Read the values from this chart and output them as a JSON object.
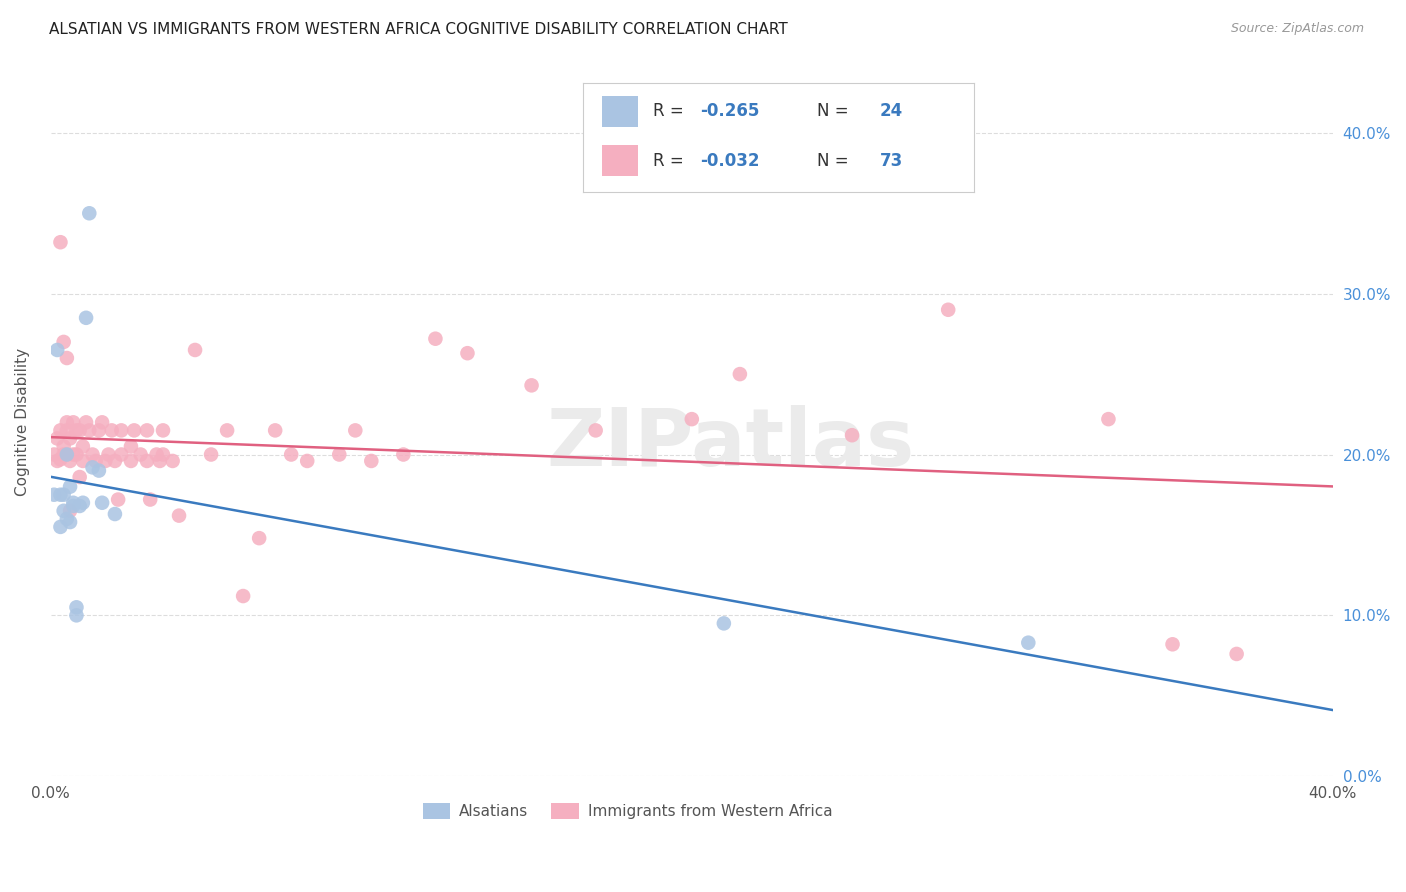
{
  "title": "ALSATIAN VS IMMIGRANTS FROM WESTERN AFRICA COGNITIVE DISABILITY CORRELATION CHART",
  "source": "Source: ZipAtlas.com",
  "ylabel": "Cognitive Disability",
  "watermark": "ZIPatlas",
  "legend_label_blue": "Alsatians",
  "legend_label_pink": "Immigrants from Western Africa",
  "blue_color": "#aac4e2",
  "pink_color": "#f5afc0",
  "blue_line_color": "#3a7abf",
  "pink_line_color": "#e06080",
  "xlim": [
    0.0,
    0.4
  ],
  "ylim": [
    0.0,
    0.44
  ],
  "yticks": [
    0.0,
    0.1,
    0.2,
    0.3,
    0.4
  ],
  "blue_r": "-0.265",
  "blue_n": "24",
  "pink_r": "-0.032",
  "pink_n": "73",
  "blue_x": [
    0.001,
    0.002,
    0.003,
    0.003,
    0.004,
    0.004,
    0.005,
    0.005,
    0.006,
    0.006,
    0.007,
    0.007,
    0.008,
    0.008,
    0.009,
    0.01,
    0.011,
    0.012,
    0.013,
    0.015,
    0.016,
    0.02,
    0.21,
    0.305
  ],
  "blue_y": [
    0.175,
    0.265,
    0.175,
    0.155,
    0.175,
    0.165,
    0.2,
    0.16,
    0.18,
    0.158,
    0.168,
    0.17,
    0.105,
    0.1,
    0.168,
    0.17,
    0.285,
    0.35,
    0.192,
    0.19,
    0.17,
    0.163,
    0.095,
    0.083
  ],
  "pink_x": [
    0.001,
    0.002,
    0.002,
    0.003,
    0.003,
    0.004,
    0.004,
    0.005,
    0.005,
    0.005,
    0.006,
    0.006,
    0.007,
    0.007,
    0.008,
    0.008,
    0.009,
    0.009,
    0.01,
    0.01,
    0.011,
    0.012,
    0.013,
    0.014,
    0.015,
    0.016,
    0.017,
    0.018,
    0.019,
    0.02,
    0.021,
    0.022,
    0.022,
    0.025,
    0.025,
    0.026,
    0.028,
    0.03,
    0.03,
    0.031,
    0.033,
    0.034,
    0.035,
    0.035,
    0.038,
    0.04,
    0.045,
    0.05,
    0.055,
    0.06,
    0.065,
    0.07,
    0.075,
    0.08,
    0.09,
    0.095,
    0.1,
    0.11,
    0.12,
    0.13,
    0.15,
    0.17,
    0.2,
    0.215,
    0.25,
    0.28,
    0.33,
    0.35,
    0.37,
    0.003,
    0.004,
    0.005,
    0.006
  ],
  "pink_y": [
    0.2,
    0.21,
    0.196,
    0.197,
    0.215,
    0.205,
    0.2,
    0.215,
    0.2,
    0.22,
    0.196,
    0.21,
    0.2,
    0.22,
    0.215,
    0.2,
    0.186,
    0.215,
    0.205,
    0.196,
    0.22,
    0.215,
    0.2,
    0.196,
    0.215,
    0.22,
    0.196,
    0.2,
    0.215,
    0.196,
    0.172,
    0.2,
    0.215,
    0.205,
    0.196,
    0.215,
    0.2,
    0.215,
    0.196,
    0.172,
    0.2,
    0.196,
    0.215,
    0.2,
    0.196,
    0.162,
    0.265,
    0.2,
    0.215,
    0.112,
    0.148,
    0.215,
    0.2,
    0.196,
    0.2,
    0.215,
    0.196,
    0.2,
    0.272,
    0.263,
    0.243,
    0.215,
    0.222,
    0.25,
    0.212,
    0.29,
    0.222,
    0.082,
    0.076,
    0.332,
    0.27,
    0.26,
    0.165
  ]
}
